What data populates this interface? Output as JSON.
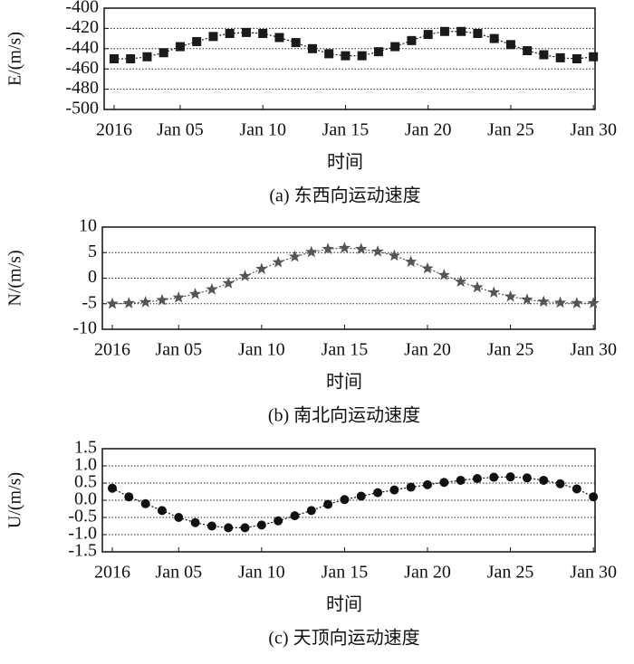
{
  "chart_data": [
    {
      "type": "scatter",
      "title": "(a) 东西向运动速度",
      "xlabel": "时间",
      "ylabel": "E/(m/s)",
      "marker": "square",
      "color": "#1a1a1a",
      "grid": true,
      "x": [
        1,
        2,
        3,
        4,
        5,
        6,
        7,
        8,
        9,
        10,
        11,
        12,
        13,
        14,
        15,
        16,
        17,
        18,
        19,
        20,
        21,
        22,
        23,
        24,
        25,
        26,
        27,
        28,
        29,
        30
      ],
      "values": [
        -450,
        -450,
        -448,
        -444,
        -438,
        -433,
        -428,
        -425,
        -424,
        -425,
        -429,
        -434,
        -440,
        -445,
        -447,
        -447,
        -443,
        -438,
        -432,
        -426,
        -423,
        -423,
        -425,
        -430,
        -436,
        -442,
        -446,
        -449,
        -450,
        -448
      ],
      "xlim": [
        0.4,
        30.1
      ],
      "xticks": [
        {
          "value": 1,
          "label": "2016"
        },
        {
          "value": 5,
          "label": "Jan 05"
        },
        {
          "value": 10,
          "label": "Jan 10"
        },
        {
          "value": 15,
          "label": "Jan 15"
        },
        {
          "value": 20,
          "label": "Jan 20"
        },
        {
          "value": 25,
          "label": "Jan 25"
        },
        {
          "value": 30,
          "label": "Jan 30"
        }
      ],
      "ylim": [
        -500,
        -400
      ],
      "yticks": [
        -400,
        -420,
        -440,
        -460,
        -480,
        -500
      ]
    },
    {
      "type": "scatter",
      "title": "(b) 南北向运动速度",
      "xlabel": "时间",
      "ylabel": "N/(m/s)",
      "marker": "star",
      "color": "#555555",
      "grid": true,
      "x": [
        1,
        2,
        3,
        4,
        5,
        6,
        7,
        8,
        9,
        10,
        11,
        12,
        13,
        14,
        15,
        16,
        17,
        18,
        19,
        20,
        21,
        22,
        23,
        24,
        25,
        26,
        27,
        28,
        29,
        30
      ],
      "values": [
        -5,
        -4.9,
        -4.7,
        -4.3,
        -3.8,
        -3.1,
        -2.2,
        -1.0,
        0.4,
        1.8,
        3.1,
        4.2,
        5.1,
        5.7,
        5.9,
        5.7,
        5.2,
        4.4,
        3.2,
        1.9,
        0.6,
        -0.7,
        -1.8,
        -2.8,
        -3.6,
        -4.2,
        -4.6,
        -4.8,
        -4.9,
        -4.9
      ],
      "xlim": [
        0.4,
        30.1
      ],
      "xticks": [
        {
          "value": 1,
          "label": "2016"
        },
        {
          "value": 5,
          "label": "Jan 05"
        },
        {
          "value": 10,
          "label": "Jan 10"
        },
        {
          "value": 15,
          "label": "Jan 15"
        },
        {
          "value": 20,
          "label": "Jan 20"
        },
        {
          "value": 25,
          "label": "Jan 25"
        },
        {
          "value": 30,
          "label": "Jan 30"
        }
      ],
      "ylim": [
        -10,
        10
      ],
      "yticks": [
        10,
        5,
        0,
        -5,
        -10
      ]
    },
    {
      "type": "scatter",
      "title": "(c) 天顶向运动速度",
      "xlabel": "时间",
      "ylabel": "U/(m/s)",
      "marker": "circle",
      "color": "#111111",
      "grid": true,
      "x": [
        1,
        2,
        3,
        4,
        5,
        6,
        7,
        8,
        9,
        10,
        11,
        12,
        13,
        14,
        15,
        16,
        17,
        18,
        19,
        20,
        21,
        22,
        23,
        24,
        25,
        26,
        27,
        28,
        29,
        30
      ],
      "values": [
        0.35,
        0.1,
        -0.1,
        -0.3,
        -0.5,
        -0.65,
        -0.75,
        -0.8,
        -0.8,
        -0.72,
        -0.6,
        -0.45,
        -0.3,
        -0.12,
        0.02,
        0.12,
        0.22,
        0.3,
        0.38,
        0.45,
        0.52,
        0.58,
        0.63,
        0.67,
        0.68,
        0.65,
        0.58,
        0.48,
        0.33,
        0.1
      ],
      "xlim": [
        0.4,
        30.1
      ],
      "xticks": [
        {
          "value": 1,
          "label": "2016"
        },
        {
          "value": 5,
          "label": "Jan 05"
        },
        {
          "value": 10,
          "label": "Jan 10"
        },
        {
          "value": 15,
          "label": "Jan 15"
        },
        {
          "value": 20,
          "label": "Jan 20"
        },
        {
          "value": 25,
          "label": "Jan 25"
        },
        {
          "value": 30,
          "label": "Jan 30"
        }
      ],
      "ylim": [
        -1.5,
        1.5
      ],
      "yticks": [
        1.5,
        {
          "value": 1.0,
          "label": "1.0"
        },
        0.5,
        {
          "value": 0,
          "label": "0.0"
        },
        -0.5,
        {
          "value": -1.0,
          "label": "-1.0"
        },
        -1.5
      ]
    }
  ]
}
